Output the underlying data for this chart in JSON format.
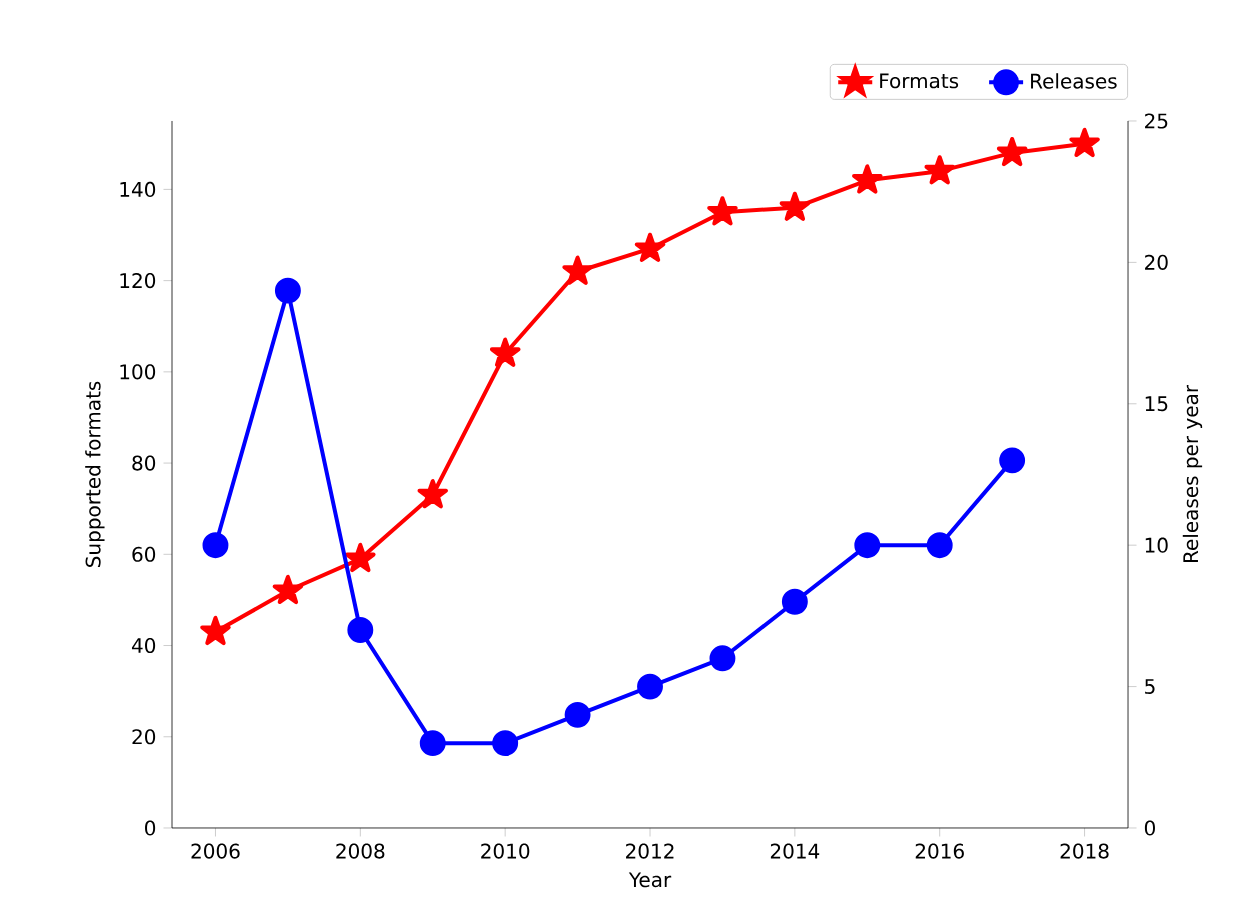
{
  "chart_data": {
    "type": "line",
    "xlabel": "Year",
    "ylabel": "Supported formats",
    "y2label": "Releases per year",
    "x": [
      2006,
      2007,
      2008,
      2009,
      2010,
      2011,
      2012,
      2013,
      2014,
      2015,
      2016,
      2017,
      2018
    ],
    "series": [
      {
        "name": "Formats",
        "color": "#ff0000",
        "marker": "star",
        "values": [
          43,
          52,
          59,
          73,
          104,
          122,
          127,
          135,
          136,
          142,
          144,
          148,
          150
        ]
      },
      {
        "name": "Releases",
        "color": "#0000ff",
        "marker": "circle",
        "axis": "y2",
        "values": [
          10,
          19,
          7,
          3,
          3,
          4,
          5,
          6,
          8,
          10,
          10,
          13,
          null
        ]
      }
    ],
    "xlim": [
      2005.4,
      2018.6
    ],
    "xticks": [
      2006,
      2008,
      2010,
      2012,
      2014,
      2016,
      2018
    ],
    "ylim": [
      0,
      155
    ],
    "yticks": [
      0,
      20,
      40,
      60,
      80,
      100,
      120,
      140
    ],
    "y2lim": [
      0,
      25
    ],
    "y2ticks": [
      0,
      5,
      10,
      15,
      20,
      25
    ],
    "legend": "top right",
    "grid": false,
    "line_style": "solid"
  }
}
